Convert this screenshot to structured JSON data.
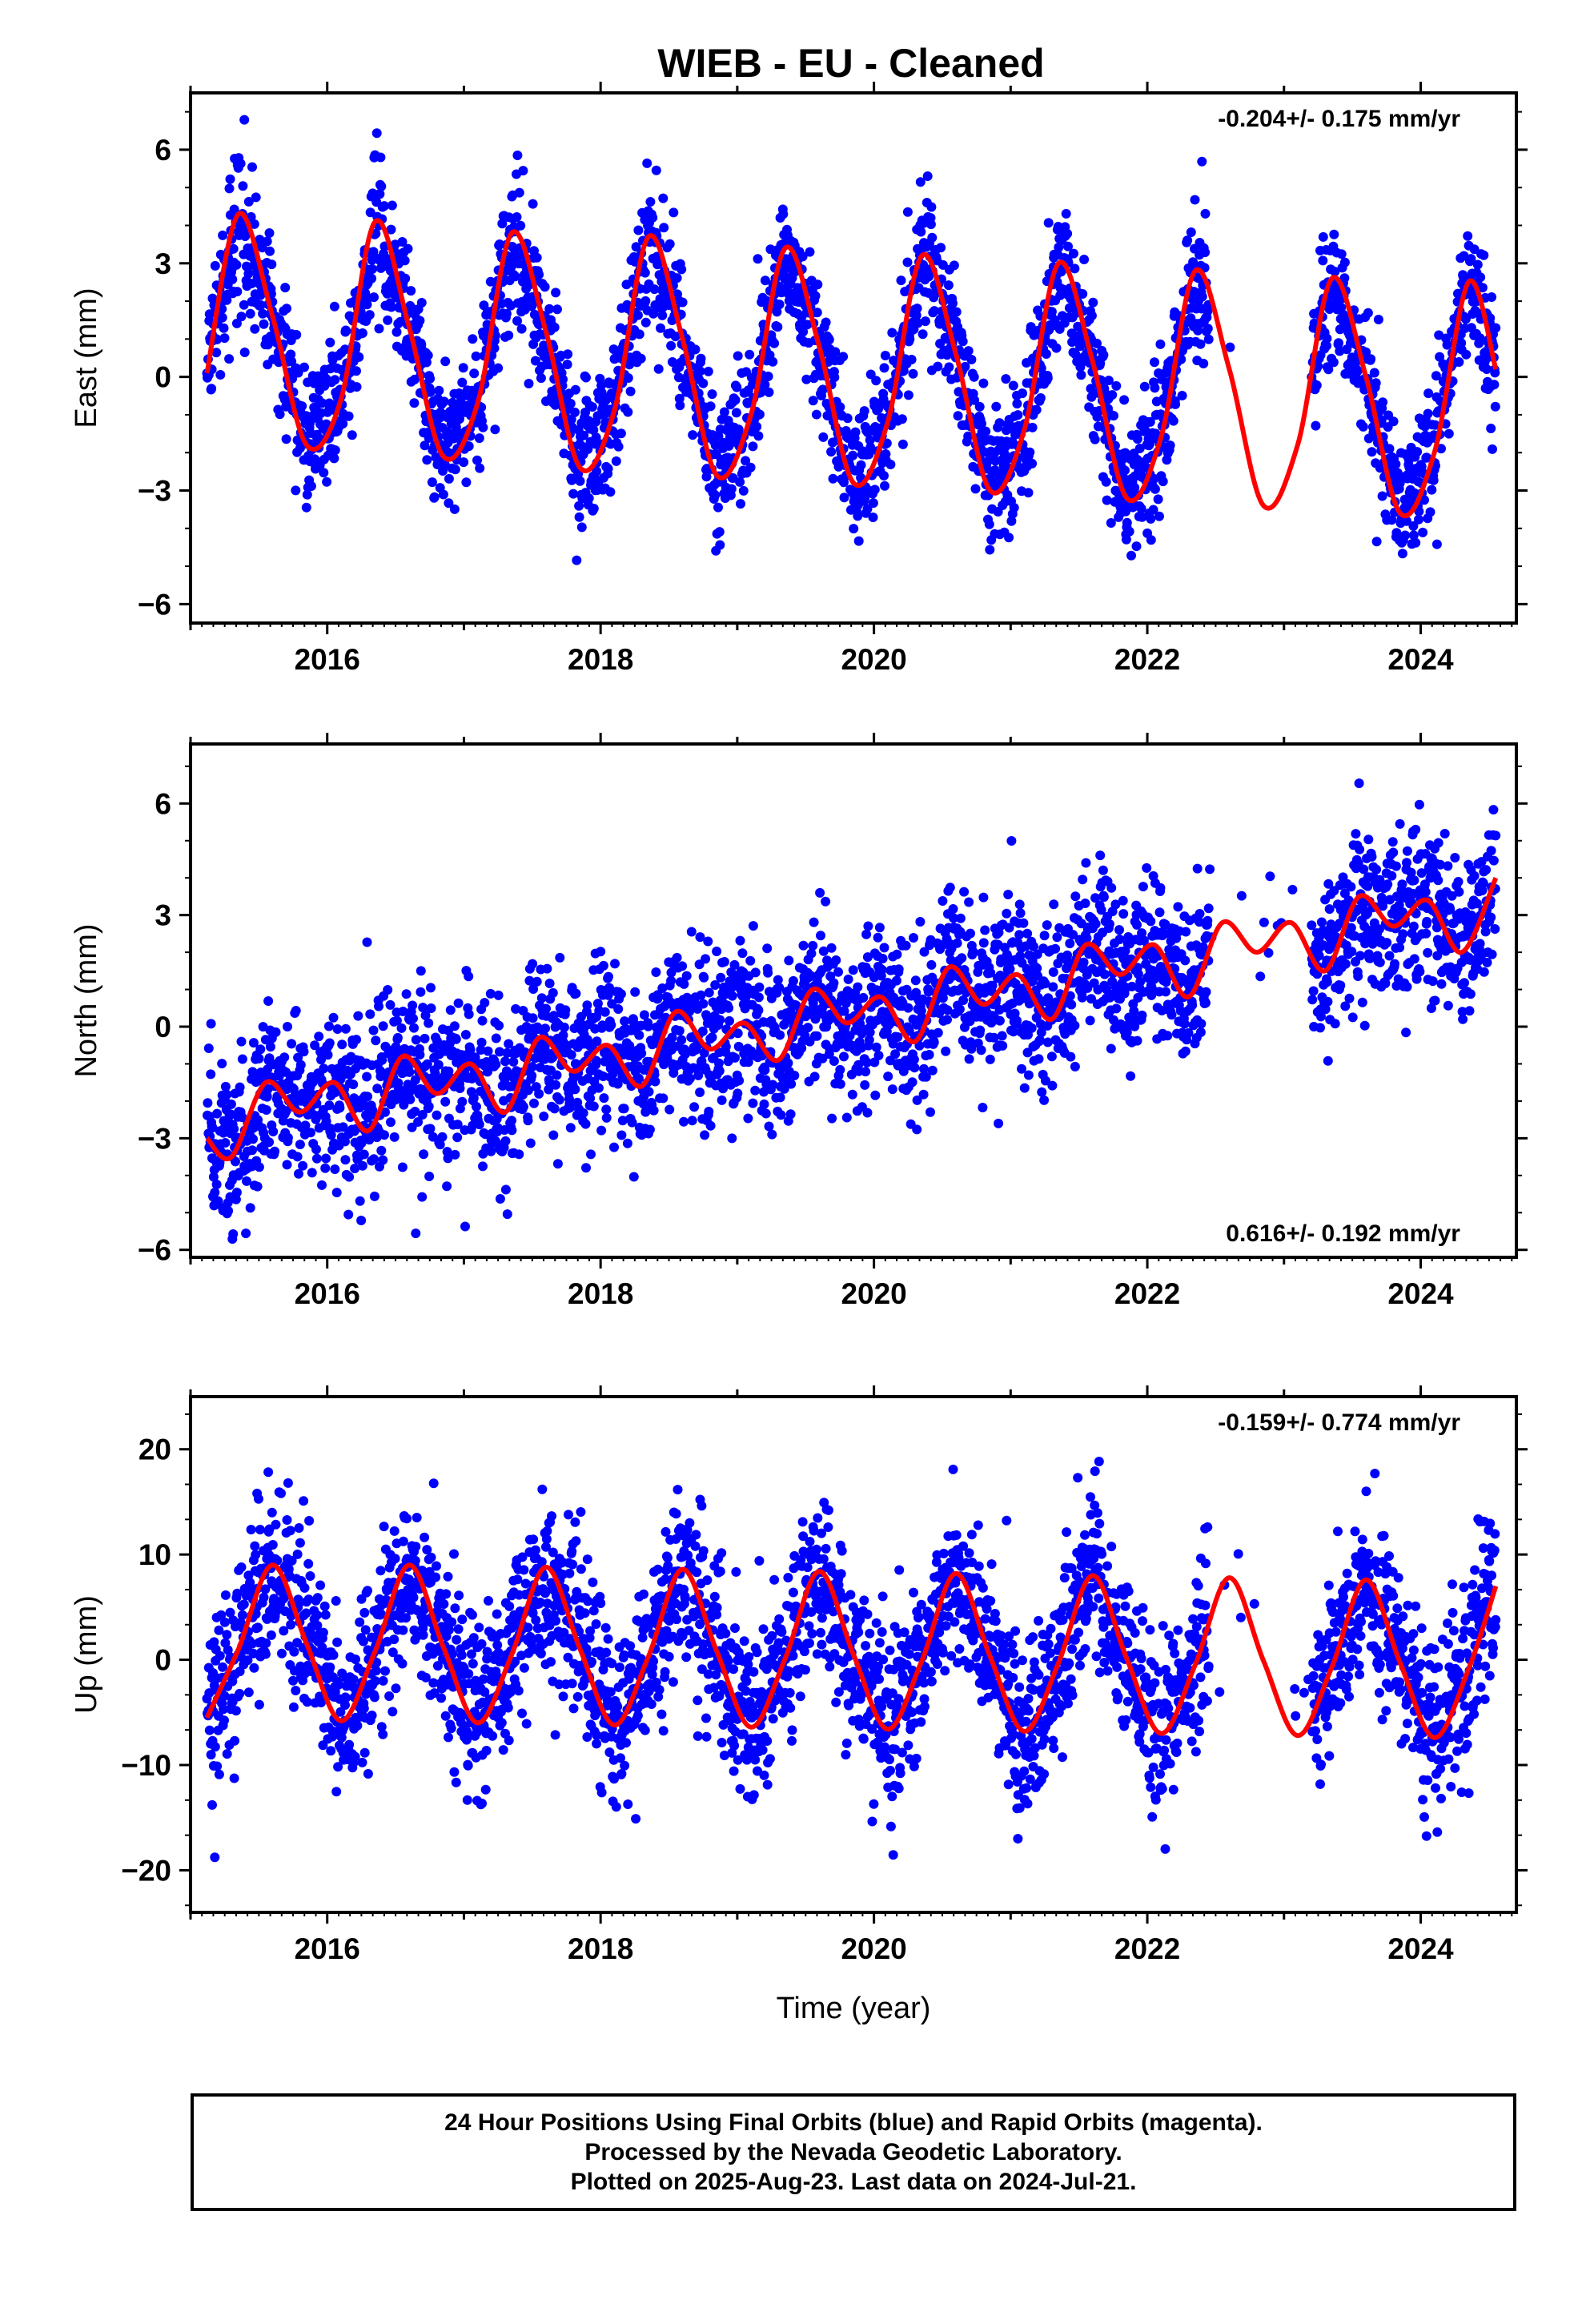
{
  "chart_data": [
    {
      "type": "scatter",
      "title": "WIEB  - EU - Cleaned",
      "ylabel": "East (mm)",
      "xlabel": "",
      "xlim": [
        2015.0,
        2024.7
      ],
      "ylim": [
        -6.5,
        7.5
      ],
      "x_ticks": [
        2016,
        2018,
        2020,
        2022,
        2024
      ],
      "x_tick_labels": [
        "2016",
        "2018",
        "2020",
        "2022",
        "2024"
      ],
      "y_ticks": [
        -6,
        -3,
        0,
        3,
        6
      ],
      "y_tick_labels": [
        "−6",
        "−3",
        "0",
        "3",
        "6"
      ],
      "rate_text": "-0.204+/- 0.175 mm/yr",
      "rate_position": "top-right",
      "grid": false,
      "series": [
        {
          "name": "Final Orbits",
          "kind": "points",
          "color": "#0000ff",
          "data_start": 2015.12,
          "data_end": 2024.55,
          "amplitude_mm": 3.2,
          "trend_mm_per_yr": -0.204,
          "noise_mm": 0.9,
          "gap": [
            2022.45,
            2023.2
          ]
        },
        {
          "name": "Model fit",
          "kind": "line",
          "color": "#ff0000",
          "x": [
            2015.12,
            2015.35,
            2015.6,
            2015.85,
            2016.1,
            2016.35,
            2016.6,
            2016.85,
            2017.1,
            2017.35,
            2017.6,
            2017.85,
            2018.1,
            2018.35,
            2018.6,
            2018.85,
            2019.1,
            2019.35,
            2019.6,
            2019.85,
            2020.1,
            2020.35,
            2020.6,
            2020.85,
            2021.1,
            2021.35,
            2021.6,
            2021.85,
            2022.1,
            2022.35,
            2022.6,
            2022.85,
            2023.1,
            2023.35,
            2023.6,
            2023.85,
            2024.1,
            2024.35,
            2024.55
          ],
          "y": [
            0.1,
            4.3,
            1.6,
            -1.8,
            -0.6,
            4.1,
            1.3,
            -2.1,
            -0.7,
            3.8,
            1.2,
            -2.4,
            -0.9,
            3.7,
            1.0,
            -2.6,
            -1.0,
            3.4,
            0.8,
            -2.8,
            -1.2,
            3.2,
            0.6,
            -3.0,
            -1.4,
            3.0,
            0.4,
            -3.2,
            -1.6,
            2.8,
            0.2,
            -3.4,
            -1.8,
            2.6,
            0.0,
            -3.6,
            -2.0,
            2.5,
            0.2
          ]
        }
      ]
    },
    {
      "type": "scatter",
      "title": "",
      "ylabel": "North (mm)",
      "xlabel": "",
      "xlim": [
        2015.0,
        2024.7
      ],
      "ylim": [
        -6.2,
        7.6
      ],
      "x_ticks": [
        2016,
        2018,
        2020,
        2022,
        2024
      ],
      "x_tick_labels": [
        "2016",
        "2018",
        "2020",
        "2022",
        "2024"
      ],
      "y_ticks": [
        -6,
        -3,
        0,
        3,
        6
      ],
      "y_tick_labels": [
        "−6",
        "−3",
        "0",
        "3",
        "6"
      ],
      "rate_text": "0.616+/- 0.192 mm/yr",
      "rate_position": "bottom-right",
      "grid": false,
      "series": [
        {
          "name": "Final Orbits",
          "kind": "points",
          "color": "#0000ff",
          "data_start": 2015.12,
          "data_end": 2024.55,
          "amplitude_mm": 0.6,
          "trend_mm_per_yr": 0.616,
          "noise_mm": 1.1,
          "gap": [
            2022.45,
            2023.2
          ]
        },
        {
          "name": "Model fit",
          "kind": "line",
          "color": "#ff0000",
          "x": [
            2015.12,
            2015.3,
            2015.55,
            2015.8,
            2016.05,
            2016.3,
            2016.55,
            2016.8,
            2017.05,
            2017.3,
            2017.55,
            2017.8,
            2018.05,
            2018.3,
            2018.55,
            2018.8,
            2019.05,
            2019.3,
            2019.55,
            2019.8,
            2020.05,
            2020.3,
            2020.55,
            2020.8,
            2021.05,
            2021.3,
            2021.55,
            2021.8,
            2022.05,
            2022.3,
            2022.55,
            2022.8,
            2023.05,
            2023.3,
            2023.55,
            2023.8,
            2024.05,
            2024.3,
            2024.55
          ],
          "y": [
            -3.0,
            -3.5,
            -1.5,
            -2.3,
            -1.5,
            -2.8,
            -0.8,
            -1.8,
            -1.0,
            -2.3,
            -0.3,
            -1.2,
            -0.5,
            -1.6,
            0.4,
            -0.6,
            0.1,
            -0.9,
            1.0,
            0.1,
            0.8,
            -0.4,
            1.6,
            0.6,
            1.4,
            0.2,
            2.2,
            1.4,
            2.2,
            0.8,
            2.8,
            2.0,
            2.8,
            1.5,
            3.5,
            2.7,
            3.4,
            2.0,
            4.0
          ]
        }
      ]
    },
    {
      "type": "scatter",
      "title": "",
      "ylabel": "Up (mm)",
      "xlabel": "Time (year)",
      "xlim": [
        2015.0,
        2024.7
      ],
      "ylim": [
        -24,
        25
      ],
      "x_ticks": [
        2016,
        2018,
        2020,
        2022,
        2024
      ],
      "x_tick_labels": [
        "2016",
        "2018",
        "2020",
        "2022",
        "2024"
      ],
      "y_ticks": [
        -20,
        -10,
        0,
        10,
        20
      ],
      "y_tick_labels": [
        "−20",
        "−10",
        "0",
        "10",
        "20"
      ],
      "rate_text": "-0.159+/- 0.774 mm/yr",
      "rate_position": "top-right",
      "grid": false,
      "series": [
        {
          "name": "Final Orbits",
          "kind": "points",
          "color": "#0000ff",
          "data_start": 2015.12,
          "data_end": 2024.55,
          "amplitude_mm": 7.5,
          "trend_mm_per_yr": -0.159,
          "noise_mm": 4.2,
          "gap": [
            2022.45,
            2023.2
          ]
        },
        {
          "name": "Model fit",
          "kind": "line",
          "color": "#ff0000",
          "x": [
            2015.12,
            2015.35,
            2015.6,
            2015.85,
            2016.1,
            2016.35,
            2016.6,
            2016.85,
            2017.1,
            2017.35,
            2017.6,
            2017.85,
            2018.1,
            2018.35,
            2018.6,
            2018.85,
            2019.1,
            2019.35,
            2019.6,
            2019.85,
            2020.1,
            2020.35,
            2020.6,
            2020.85,
            2021.1,
            2021.35,
            2021.6,
            2021.85,
            2022.1,
            2022.35,
            2022.6,
            2022.85,
            2023.1,
            2023.35,
            2023.6,
            2023.85,
            2024.1,
            2024.35,
            2024.55
          ],
          "y": [
            -5.5,
            1.0,
            9.0,
            1.5,
            -5.8,
            0.8,
            9.0,
            1.2,
            -6.0,
            0.5,
            8.8,
            1.0,
            -6.2,
            0.3,
            8.6,
            0.8,
            -6.4,
            0.1,
            8.4,
            0.5,
            -6.6,
            -0.1,
            8.2,
            0.3,
            -6.8,
            -0.3,
            8.0,
            0.1,
            -7.0,
            -0.5,
            7.8,
            -0.1,
            -7.2,
            -0.7,
            7.6,
            -0.3,
            -7.4,
            -0.9,
            7.0
          ]
        }
      ]
    }
  ],
  "footer": {
    "line1": "24 Hour Positions Using Final Orbits (blue) and Rapid Orbits (magenta).",
    "line2": "Processed by the Nevada Geodetic Laboratory.",
    "line3": "Plotted on 2025-Aug-23. Last data on 2024-Jul-21."
  }
}
